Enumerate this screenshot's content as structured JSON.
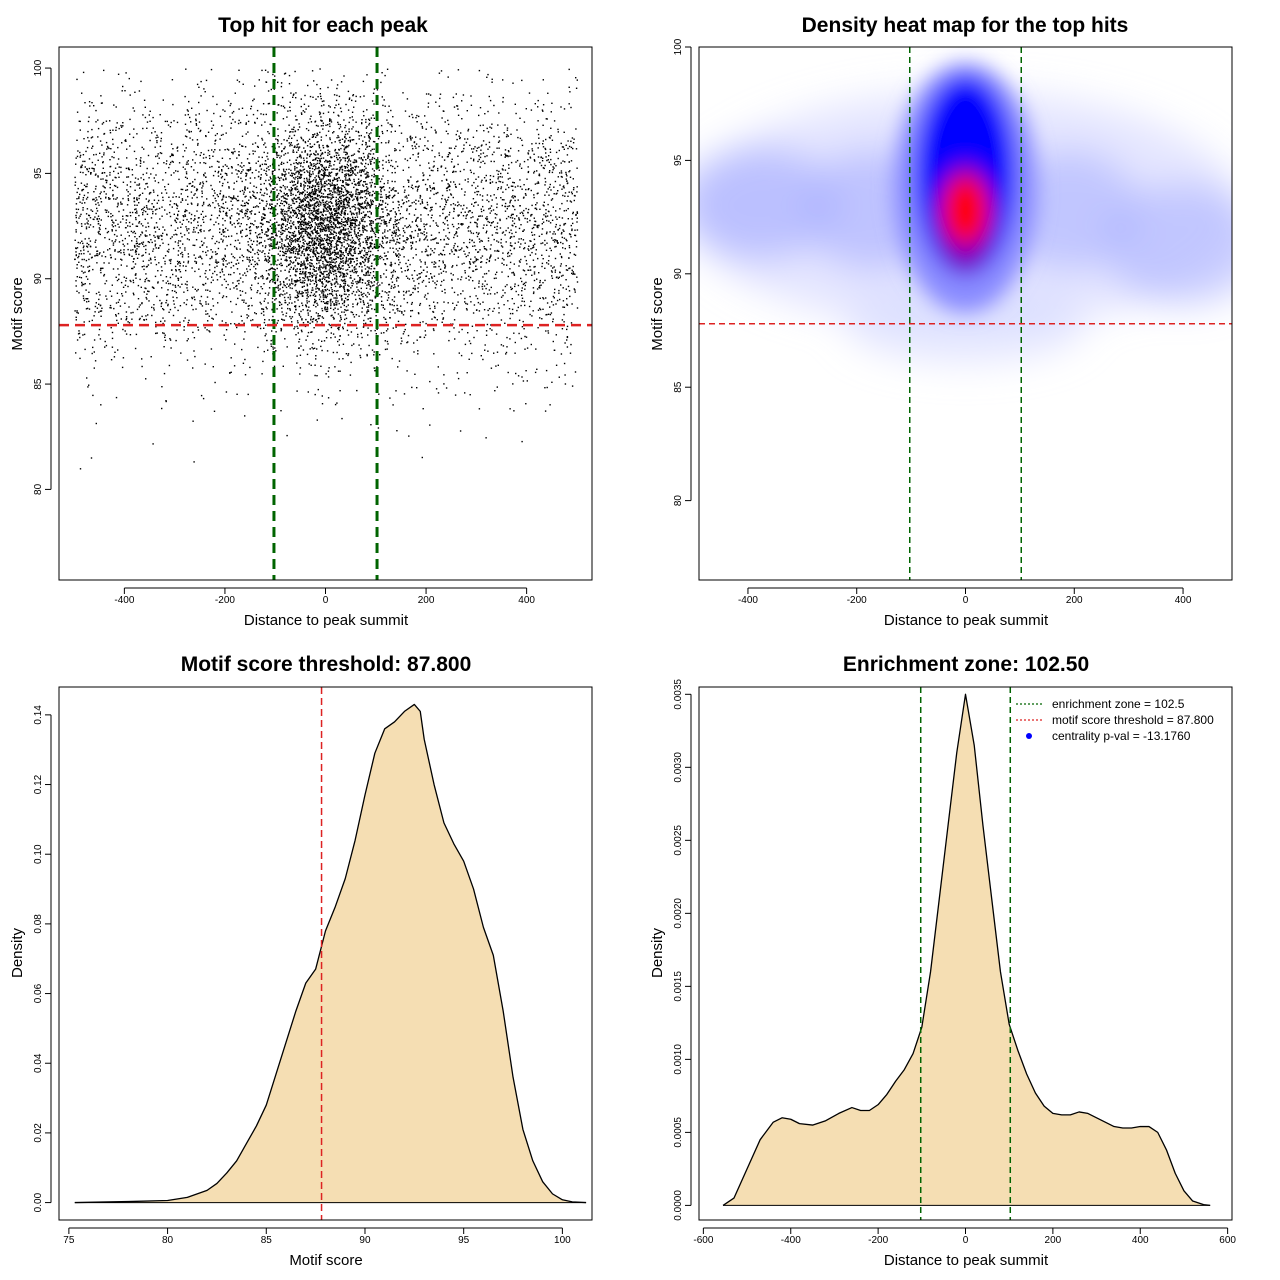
{
  "chart_data": [
    {
      "type": "scatter",
      "title": "Top hit for each peak",
      "xlabel": "Distance to peak summit",
      "ylabel": "Motif score",
      "xlim": [
        -530,
        530
      ],
      "ylim": [
        75.7,
        101.0
      ],
      "xticks": [
        -400,
        -200,
        0,
        200,
        400
      ],
      "yticks": [
        80,
        85,
        90,
        95,
        100
      ],
      "xtick_labels": [
        "-400",
        "-200",
        "0",
        "200",
        "400"
      ],
      "ytick_labels": [
        "80",
        "85",
        "90",
        "95",
        "100"
      ],
      "vlines": [
        -102.5,
        102.5
      ],
      "hline": 87.8,
      "colors": {
        "points": "#000000",
        "vline": "#006400",
        "hline": "#dd2222"
      },
      "x_range": [
        -500,
        500
      ],
      "y_range": [
        76.5,
        100.0
      ],
      "center_peak": {
        "x": 0,
        "y": 92.5
      },
      "grid": false
    },
    {
      "type": "heatmap",
      "title": "Density heat map for the top hits",
      "xlabel": "Distance to peak summit",
      "ylabel": "Motif score",
      "xlim": [
        -490,
        490
      ],
      "ylim": [
        76.5,
        100.0
      ],
      "xticks": [
        -400,
        -200,
        0,
        200,
        400
      ],
      "yticks": [
        80,
        85,
        90,
        95,
        100
      ],
      "xtick_labels": [
        "-400",
        "-200",
        "0",
        "200",
        "400"
      ],
      "ytick_labels": [
        "80",
        "85",
        "90",
        "95",
        "100"
      ],
      "vlines": [
        -102.5,
        102.5
      ],
      "hline": 87.8,
      "hotspot": {
        "x": 0,
        "y": 92.8
      },
      "colors": {
        "low": "#ffffff",
        "mid": "#0000ff",
        "high": "#ff0000",
        "vline": "#006400",
        "hline": "#dd2222"
      },
      "grid": false
    },
    {
      "type": "area",
      "title": "Motif score threshold: 87.800",
      "xlabel": "Motif score",
      "ylabel": "Density",
      "xlim": [
        74.5,
        101.5
      ],
      "ylim": [
        -0.005,
        0.148
      ],
      "xticks": [
        75,
        80,
        85,
        90,
        95,
        100
      ],
      "yticks": [
        0.0,
        0.02,
        0.04,
        0.06,
        0.08,
        0.1,
        0.12,
        0.14
      ],
      "xtick_labels": [
        "75",
        "80",
        "85",
        "90",
        "95",
        "100"
      ],
      "ytick_labels": [
        "0.00",
        "0.02",
        "0.04",
        "0.06",
        "0.08",
        "0.10",
        "0.12",
        "0.14"
      ],
      "vline": 87.8,
      "x": [
        75.3,
        78,
        80,
        81,
        82,
        82.5,
        83,
        83.5,
        84,
        84.5,
        85,
        85.5,
        86,
        86.5,
        87,
        87.5,
        88,
        88.5,
        89,
        89.5,
        90,
        90.5,
        91,
        91.5,
        92,
        92.5,
        92.8,
        93,
        93.5,
        94,
        94.5,
        95,
        95.5,
        96,
        96.5,
        97,
        97.5,
        98,
        98.5,
        99,
        99.5,
        100,
        100.5,
        101.2
      ],
      "y": [
        0.0,
        0.0003,
        0.0006,
        0.0015,
        0.0035,
        0.0055,
        0.0085,
        0.012,
        0.017,
        0.022,
        0.028,
        0.037,
        0.046,
        0.055,
        0.063,
        0.067,
        0.078,
        0.085,
        0.093,
        0.104,
        0.117,
        0.129,
        0.136,
        0.138,
        0.141,
        0.143,
        0.141,
        0.133,
        0.12,
        0.109,
        0.103,
        0.098,
        0.09,
        0.079,
        0.071,
        0.055,
        0.036,
        0.021,
        0.012,
        0.006,
        0.0025,
        0.0008,
        0.0002,
        0.0
      ],
      "colors": {
        "fill": "#f5deb3",
        "line": "#000000",
        "vline": "#dd2222"
      },
      "grid": false
    },
    {
      "type": "area",
      "title": "Enrichment zone: 102.50",
      "xlabel": "Distance to peak summit",
      "ylabel": "Density",
      "xlim": [
        -610,
        610
      ],
      "ylim": [
        -0.0001,
        0.00355
      ],
      "xticks": [
        -600,
        -400,
        -200,
        0,
        200,
        400,
        600
      ],
      "yticks": [
        0.0,
        0.0005,
        0.001,
        0.0015,
        0.002,
        0.0025,
        0.003,
        0.0035
      ],
      "xtick_labels": [
        "-600",
        "-400",
        "-200",
        "0",
        "200",
        "400",
        "600"
      ],
      "ytick_labels": [
        "0.0000",
        "0.0005",
        "0.0010",
        "0.0015",
        "0.0020",
        "0.0025",
        "0.0030",
        "0.0035"
      ],
      "vlines": [
        -102.5,
        102.5
      ],
      "x": [
        -555,
        -530,
        -500,
        -470,
        -440,
        -420,
        -400,
        -380,
        -350,
        -320,
        -290,
        -260,
        -240,
        -220,
        -200,
        -180,
        -160,
        -140,
        -120,
        -100,
        -80,
        -60,
        -40,
        -20,
        0,
        20,
        40,
        60,
        80,
        100,
        120,
        140,
        160,
        180,
        200,
        220,
        240,
        260,
        280,
        300,
        320,
        340,
        360,
        380,
        400,
        420,
        440,
        460,
        480,
        500,
        520,
        545,
        560
      ],
      "y": [
        0.0,
        5e-05,
        0.00025,
        0.00045,
        0.00057,
        0.0006,
        0.00059,
        0.00056,
        0.00055,
        0.00058,
        0.00063,
        0.00067,
        0.00065,
        0.00065,
        0.00069,
        0.00076,
        0.00085,
        0.00093,
        0.00104,
        0.00122,
        0.0016,
        0.0021,
        0.0026,
        0.0031,
        0.0035,
        0.00315,
        0.0026,
        0.0021,
        0.0016,
        0.00124,
        0.00106,
        0.0009,
        0.00077,
        0.00068,
        0.00063,
        0.00062,
        0.00062,
        0.00064,
        0.00063,
        0.0006,
        0.00057,
        0.00054,
        0.00053,
        0.00053,
        0.00054,
        0.00054,
        0.0005,
        0.00038,
        0.00022,
        0.0001,
        3e-05,
        5e-06,
        0.0
      ],
      "legend": {
        "position": "top-right",
        "entries": [
          {
            "label": "enrichment zone = 102.5",
            "style": "dotted",
            "color": "#006400"
          },
          {
            "label": "motif score threshold = 87.800",
            "style": "dotted",
            "color": "#dd2222"
          },
          {
            "label": "centrality p-val = -13.1760",
            "style": "point",
            "color": "#0000ff"
          }
        ]
      },
      "colors": {
        "fill": "#f5deb3",
        "line": "#000000",
        "vline": "#006400"
      },
      "grid": false
    }
  ]
}
